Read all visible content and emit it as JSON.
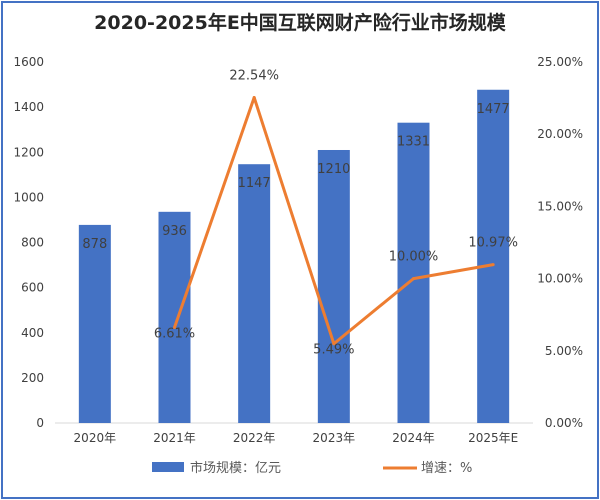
{
  "chart_data": {
    "type": "bar+line",
    "title": "2020-2025年E中国互联网财产险行业市场规模",
    "categories": [
      "2020年",
      "2021年",
      "2022年",
      "2023年",
      "2024年",
      "2025年E"
    ],
    "series": [
      {
        "name": "市场规模：亿元",
        "type": "bar",
        "axis": "left",
        "color": "#4472c4",
        "values": [
          878,
          936,
          1147,
          1210,
          1331,
          1477
        ],
        "labels": [
          "878",
          "936",
          "1147",
          "1210",
          "1331",
          "1477"
        ]
      },
      {
        "name": "增速：%",
        "type": "line",
        "axis": "right",
        "color": "#ed7d31",
        "values": [
          null,
          6.61,
          22.54,
          5.49,
          10.0,
          10.97
        ],
        "labels": [
          "",
          "6.61%",
          "22.54%",
          "5.49%",
          "10.00%",
          "10.97%"
        ]
      }
    ],
    "y_left": {
      "ylim": [
        0,
        1600
      ],
      "ticks": [
        "0",
        "200",
        "400",
        "600",
        "800",
        "1000",
        "1200",
        "1400",
        "1600"
      ]
    },
    "y_right": {
      "ylim": [
        0,
        25
      ],
      "ticks": [
        "0.00%",
        "5.00%",
        "10.00%",
        "15.00%",
        "20.00%",
        "25.00%"
      ]
    },
    "grid": false,
    "legend": "bottom"
  }
}
